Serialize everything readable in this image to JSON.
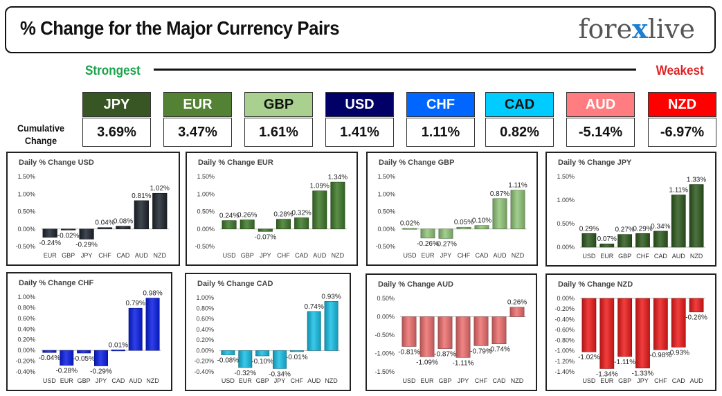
{
  "header": {
    "title": "% Change for the Major Currency Pairs",
    "logo_left": "fore",
    "logo_x": "x",
    "logo_right": "live"
  },
  "ranking": {
    "strongest_label": "Strongest",
    "weakest_label": "Weakest",
    "row_label_line1": "Cumulative",
    "row_label_line2": "Change",
    "currencies": [
      {
        "code": "JPY",
        "value": "3.69%",
        "color": "#375623",
        "text_color": "#ffffff"
      },
      {
        "code": "EUR",
        "value": "3.47%",
        "color": "#548235",
        "text_color": "#ffffff"
      },
      {
        "code": "GBP",
        "value": "1.61%",
        "color": "#a9d08e",
        "text_color": "#111111"
      },
      {
        "code": "USD",
        "value": "1.41%",
        "color": "#000066",
        "text_color": "#ffffff"
      },
      {
        "code": "CHF",
        "value": "1.11%",
        "color": "#0066ff",
        "text_color": "#ffffff"
      },
      {
        "code": "CAD",
        "value": "0.82%",
        "color": "#00ccff",
        "text_color": "#111111"
      },
      {
        "code": "AUD",
        "value": "-5.14%",
        "color": "#ff7c80",
        "text_color": "#ffffff"
      },
      {
        "code": "NZD",
        "value": "-6.97%",
        "color": "#ff0000",
        "text_color": "#ffffff"
      }
    ]
  },
  "chart_data": [
    {
      "type": "bar",
      "title": "Daily % Change USD",
      "categories": [
        "EUR",
        "GBP",
        "JPY",
        "CHF",
        "CAD",
        "AUD",
        "NZD"
      ],
      "values": [
        -0.24,
        -0.02,
        -0.29,
        0.04,
        0.08,
        0.81,
        1.02
      ],
      "labels": [
        "-0.24%",
        "-0.02%",
        "-0.29%",
        "0.04%",
        "0.08%",
        "0.81%",
        "1.02%"
      ],
      "ylim": [
        -0.5,
        1.5
      ],
      "yticks": [
        -0.5,
        0,
        0.5,
        1,
        1.5
      ],
      "ytick_labels": [
        "-0.50%",
        "0.00%",
        "0.50%",
        "1.00%",
        "1.50%"
      ],
      "pos_color": "#1f2630",
      "neg_color": "#1f2630",
      "ylabel": "",
      "xlabel": ""
    },
    {
      "type": "bar",
      "title": "Daily % Change EUR",
      "categories": [
        "USD",
        "GBP",
        "JPY",
        "CHF",
        "CAD",
        "AUD",
        "NZD"
      ],
      "values": [
        0.24,
        0.26,
        -0.07,
        0.28,
        0.32,
        1.09,
        1.34
      ],
      "labels": [
        "0.24%",
        "0.26%",
        "-0.07%",
        "0.28%",
        "0.32%",
        "1.09%",
        "1.34%"
      ],
      "ylim": [
        -0.5,
        1.5
      ],
      "yticks": [
        -0.5,
        0,
        0.5,
        1,
        1.5
      ],
      "ytick_labels": [
        "-0.50%",
        "0.00%",
        "0.50%",
        "1.00%",
        "1.50%"
      ],
      "pos_color": "#3f7a2a",
      "neg_color": "#3f7a2a",
      "ylabel": "",
      "xlabel": ""
    },
    {
      "type": "bar",
      "title": "Daily % Change GBP",
      "categories": [
        "USD",
        "EUR",
        "JPY",
        "CHF",
        "CAD",
        "AUD",
        "NZD"
      ],
      "values": [
        0.02,
        -0.26,
        -0.27,
        0.05,
        0.1,
        0.87,
        1.11
      ],
      "labels": [
        "0.02%",
        "-0.26%",
        "-0.27%",
        "0.05%",
        "0.10%",
        "0.87%",
        "1.11%"
      ],
      "ylim": [
        -0.5,
        1.5
      ],
      "yticks": [
        -0.5,
        0,
        0.5,
        1,
        1.5
      ],
      "ytick_labels": [
        "-0.50%",
        "0.00%",
        "0.50%",
        "1.00%",
        "1.50%"
      ],
      "pos_color": "#92c77a",
      "neg_color": "#92c77a",
      "ylabel": "",
      "xlabel": ""
    },
    {
      "type": "bar",
      "title": "Daily % Change JPY",
      "categories": [
        "USD",
        "EUR",
        "GBP",
        "CHF",
        "CAD",
        "AUD",
        "NZD"
      ],
      "values": [
        0.29,
        0.07,
        0.27,
        0.29,
        0.34,
        1.11,
        1.33
      ],
      "labels": [
        "0.29%",
        "0.07%",
        "0.27%",
        "0.29%",
        "0.34%",
        "1.11%",
        "1.33%"
      ],
      "ylim": [
        0,
        1.5
      ],
      "yticks": [
        0,
        0.5,
        1,
        1.5
      ],
      "ytick_labels": [
        "0.00%",
        "0.50%",
        "1.00%",
        "1.50%"
      ],
      "pos_color": "#2f5a1f",
      "neg_color": "#2f5a1f",
      "ylabel": "",
      "xlabel": ""
    },
    {
      "type": "bar",
      "title": "Daily % Change CHF",
      "categories": [
        "USD",
        "EUR",
        "GBP",
        "JPY",
        "CAD",
        "AUD",
        "NZD"
      ],
      "values": [
        -0.04,
        -0.28,
        -0.05,
        -0.29,
        0.01,
        0.79,
        0.98
      ],
      "labels": [
        "-0.04%",
        "-0.28%",
        "-0.05%",
        "-0.29%",
        "0.01%",
        "0.79%",
        "0.98%"
      ],
      "ylim": [
        -0.4,
        1.0
      ],
      "yticks": [
        -0.4,
        -0.2,
        0,
        0.2,
        0.4,
        0.6,
        0.8,
        1.0
      ],
      "ytick_labels": [
        "-0.40%",
        "-0.20%",
        "0.00%",
        "0.20%",
        "0.40%",
        "0.60%",
        "0.80%",
        "1.00%"
      ],
      "pos_color": "#0a1ee6",
      "neg_color": "#0a1ee6",
      "ylabel": "",
      "xlabel": ""
    },
    {
      "type": "bar",
      "title": "Daily % Change CAD",
      "categories": [
        "USD",
        "EUR",
        "GBP",
        "JPY",
        "CHF",
        "AUD",
        "NZD"
      ],
      "values": [
        -0.08,
        -0.32,
        -0.1,
        -0.34,
        -0.01,
        0.74,
        0.93
      ],
      "labels": [
        "-0.08%",
        "-0.32%",
        "-0.10%",
        "-0.34%",
        "-0.01%",
        "0.74%",
        "0.93%"
      ],
      "ylim": [
        -0.4,
        1.0
      ],
      "yticks": [
        -0.4,
        -0.2,
        0,
        0.2,
        0.4,
        0.6,
        0.8,
        1.0
      ],
      "ytick_labels": [
        "-0.40%",
        "-0.20%",
        "0.00%",
        "0.20%",
        "0.40%",
        "0.60%",
        "0.80%",
        "1.00%"
      ],
      "pos_color": "#18c0e6",
      "neg_color": "#18c0e6",
      "ylabel": "",
      "xlabel": ""
    },
    {
      "type": "bar",
      "title": "Daily % Change AUD",
      "categories": [
        "USD",
        "EUR",
        "GBP",
        "JPY",
        "CHF",
        "CAD",
        "NZD"
      ],
      "values": [
        -0.81,
        -1.09,
        -0.87,
        -1.11,
        -0.79,
        -0.74,
        0.26
      ],
      "labels": [
        "-0.81%",
        "-1.09%",
        "-0.87%",
        "-1.11%",
        "-0.79%",
        "-0.74%",
        "0.26%"
      ],
      "ylim": [
        -1.5,
        0.5
      ],
      "yticks": [
        -1.5,
        -1,
        -0.5,
        0,
        0.5
      ],
      "ytick_labels": [
        "-1.50%",
        "-1.00%",
        "-0.50%",
        "0.00%",
        "0.50%"
      ],
      "pos_color": "#ee7070",
      "neg_color": "#ee7070",
      "ylabel": "",
      "xlabel": ""
    },
    {
      "type": "bar",
      "title": "Daily % Change NZD",
      "categories": [
        "USD",
        "EUR",
        "GBP",
        "JPY",
        "CHF",
        "CAD",
        "AUD"
      ],
      "values": [
        -1.02,
        -1.34,
        -1.11,
        -1.33,
        -0.98,
        -0.93,
        -0.26
      ],
      "labels": [
        "-1.02%",
        "-1.34%",
        "-1.11%",
        "-1.33%",
        "-0.98%",
        "-0.93%",
        "-0.26%"
      ],
      "ylim": [
        -1.4,
        0
      ],
      "yticks": [
        -1.4,
        -1.2,
        -1.0,
        -0.8,
        -0.6,
        -0.4,
        -0.2,
        0
      ],
      "ytick_labels": [
        "-1.40%",
        "-1.20%",
        "-1.00%",
        "-0.80%",
        "-0.60%",
        "-0.40%",
        "-0.20%",
        "0.00%"
      ],
      "pos_color": "#ee1c1c",
      "neg_color": "#ee1c1c",
      "ylabel": "",
      "xlabel": ""
    }
  ]
}
